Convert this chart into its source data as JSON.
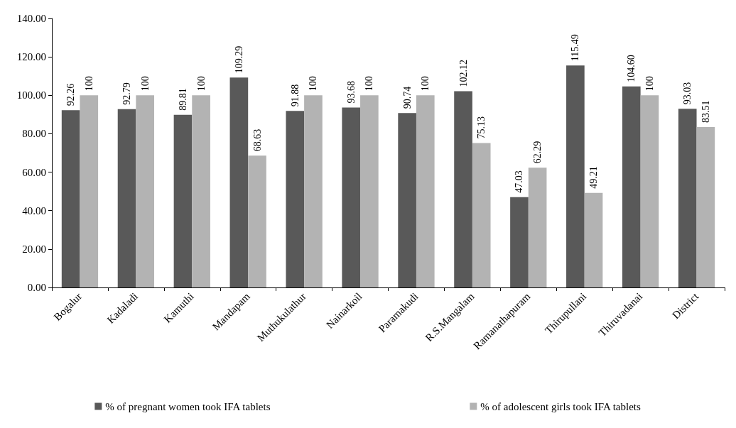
{
  "chart_data": {
    "type": "bar",
    "categories": [
      "Bogalur",
      "Kadaladi",
      "Kamuthi",
      "Mandapam",
      "Muthukulathur",
      "Nainarkoil",
      "Paramakudi",
      "R.S.Mangalam",
      "Ramanathapuram",
      "Thirupullani",
      "Thiruvadanai",
      "District"
    ],
    "series": [
      {
        "name": "% of pregnant women took IFA tablets",
        "color": "#595959",
        "values": [
          92.26,
          92.79,
          89.81,
          109.29,
          91.88,
          93.68,
          90.74,
          102.12,
          47.03,
          115.49,
          104.6,
          93.03
        ],
        "value_labels": [
          "92.26",
          "92.79",
          "89.81",
          "109.29",
          "91.88",
          "93.68",
          "90.74",
          "102.12",
          "47.03",
          "115.49",
          "104.60",
          "93.03"
        ]
      },
      {
        "name": "% of adolescent girls took IFA tablets",
        "color": "#b3b3b3",
        "values": [
          100,
          100,
          100,
          68.63,
          100,
          100,
          100,
          75.13,
          62.29,
          49.21,
          100,
          83.51
        ],
        "value_labels": [
          "100",
          "100",
          "100",
          "68.63",
          "100",
          "100",
          "100",
          "75.13",
          "62.29",
          "49.21",
          "100",
          "83.51"
        ]
      }
    ],
    "ylim": [
      0,
      140
    ],
    "yticks": [
      {
        "value": 0,
        "label": "0.00"
      },
      {
        "value": 20,
        "label": "20.00"
      },
      {
        "value": 40,
        "label": "40.00"
      },
      {
        "value": 60,
        "label": "60.00"
      },
      {
        "value": 80,
        "label": "80.00"
      },
      {
        "value": 100,
        "label": "100.00"
      },
      {
        "value": 120,
        "label": "120.00"
      },
      {
        "value": 140,
        "label": "140.00"
      }
    ],
    "grid": false,
    "legend": "bottom"
  }
}
